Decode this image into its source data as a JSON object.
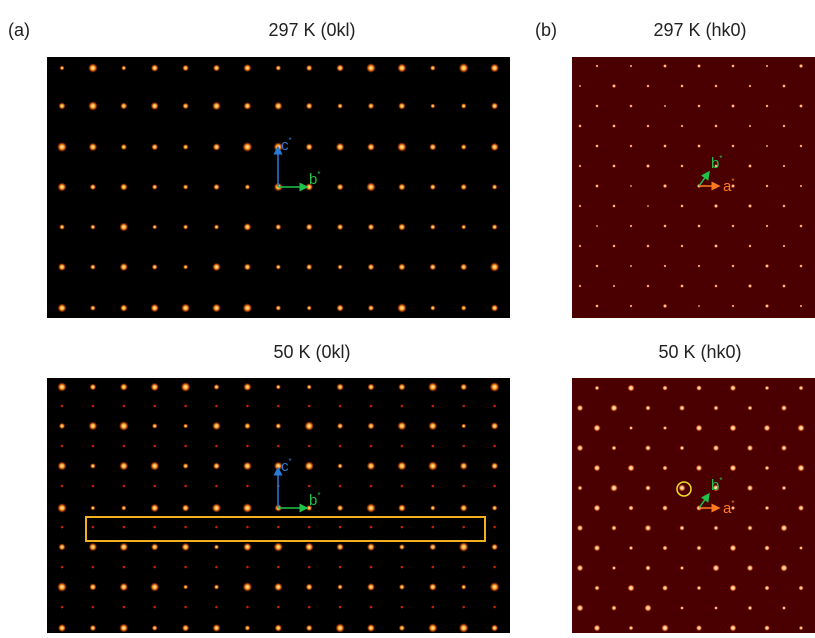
{
  "panels": [
    {
      "label": "(a)",
      "images": [
        {
          "title": "297 K (0kl)",
          "vectors": [
            {
              "name": "c",
              "sup": "*"
            },
            {
              "name": "b",
              "sup": "*"
            }
          ]
        },
        {
          "title": "50 K (0kl)",
          "vectors": [
            {
              "name": "c",
              "sup": "*"
            },
            {
              "name": "b",
              "sup": "*"
            }
          ]
        }
      ]
    },
    {
      "label": "(b)",
      "images": [
        {
          "title": "297 K (hk0)",
          "vectors": [
            {
              "name": "b",
              "sup": "*"
            },
            {
              "name": "a",
              "sup": "*"
            }
          ]
        },
        {
          "title": "50 K (hk0)",
          "vectors": [
            {
              "name": "b",
              "sup": "*"
            },
            {
              "name": "a",
              "sup": "*"
            }
          ]
        }
      ]
    }
  ]
}
